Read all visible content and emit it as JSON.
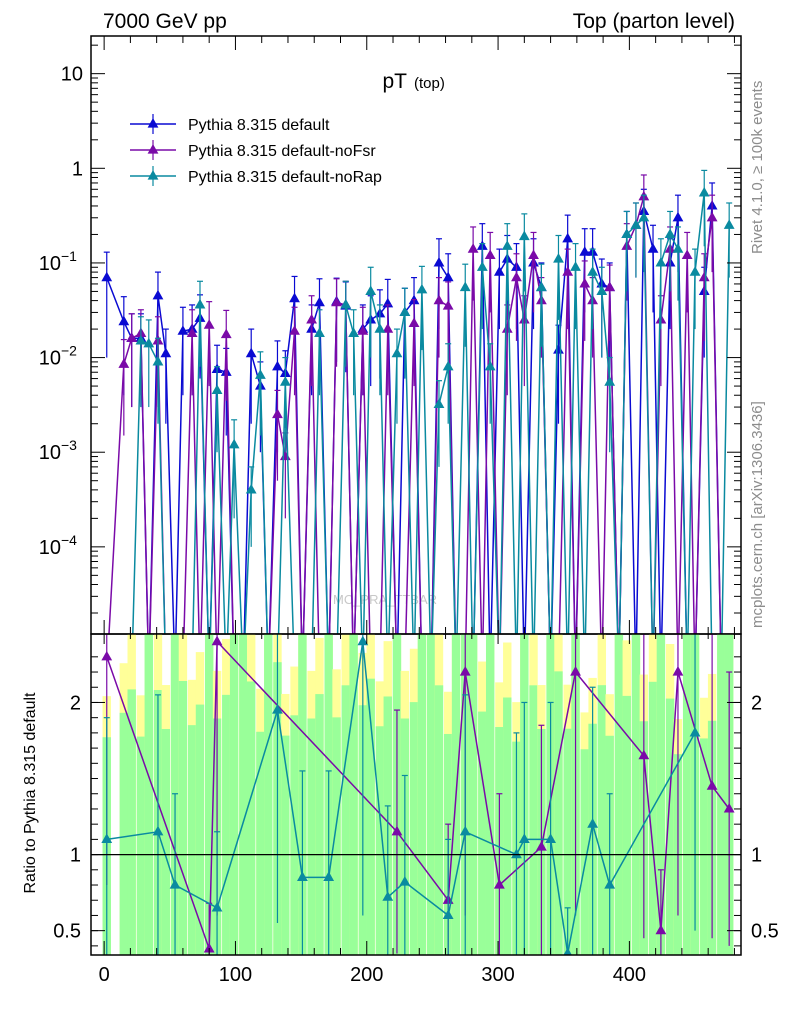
{
  "header": {
    "left": "7000 GeV pp",
    "right": "Top (parton level)"
  },
  "side_labels": {
    "upper": "Rivet 4.1.0, ≥ 100k events",
    "lower": "mcplots.cern.ch [arXiv:1306.3436]"
  },
  "colors": {
    "default": "#0a0ad2",
    "noFsr": "#7a0aa8",
    "noRap": "#0a8aa0",
    "band_green": "#99ff99",
    "band_yellow": "#ffff99"
  },
  "chart_data": [
    {
      "type": "line",
      "panel": "main",
      "title": "pT",
      "title_sub": "(top)",
      "watermark": "MC_PRA_TTBAR",
      "yscale": "log",
      "xlim": [
        -10,
        485
      ],
      "ylim": [
        1.2e-05,
        25
      ],
      "yticks": [
        {
          "value": 0.0001,
          "base": "10",
          "exp": "−4"
        },
        {
          "value": 0.001,
          "base": "10",
          "exp": "−3"
        },
        {
          "value": 0.01,
          "base": "10",
          "exp": "−2"
        },
        {
          "value": 0.1,
          "base": "10",
          "exp": "−1"
        },
        {
          "value": 1,
          "base": "1",
          "exp": ""
        },
        {
          "value": 10,
          "base": "10",
          "exp": ""
        }
      ],
      "legend_position": "top-left",
      "series": [
        {
          "name": "Pythia 8.315 default",
          "key": "default",
          "x": [
            2,
            15,
            21,
            28,
            34,
            41,
            47,
            54,
            60,
            67,
            73,
            80,
            86,
            93,
            99,
            106,
            112,
            119,
            125,
            132,
            138,
            145,
            151,
            158,
            164,
            171,
            177,
            184,
            190,
            197,
            203,
            210,
            216,
            223,
            229,
            236,
            242,
            249,
            255,
            262,
            268,
            275,
            281,
            288,
            294,
            301,
            307,
            314,
            320,
            327,
            333,
            340,
            346,
            353,
            359,
            366,
            372,
            379,
            385,
            392,
            398,
            405,
            411,
            418,
            424,
            431,
            437,
            444,
            450,
            457,
            463,
            470,
            476
          ],
          "y": [
            0.07,
            0.024,
            0.016,
            0.016,
            0,
            0.045,
            0.011,
            0,
            0.019,
            0.02,
            0.026,
            0,
            0.0075,
            0.007,
            0,
            0,
            0.011,
            0.005,
            0,
            0.008,
            0.0068,
            0.042,
            0,
            0.02,
            0.038,
            0,
            0.039,
            0.035,
            0,
            0.02,
            0.025,
            0.029,
            0.037,
            0,
            0.03,
            0.04,
            0,
            0,
            0.1,
            0.07,
            0,
            0,
            0,
            0.15,
            0,
            0.08,
            0.11,
            0.09,
            0,
            0.1,
            0.055,
            0,
            0.012,
            0.18,
            0,
            0.13,
            0.13,
            0.06,
            0.055,
            0,
            0.2,
            0,
            0.35,
            0.14,
            0,
            0.1,
            0.3,
            0,
            0,
            0.05,
            0.4,
            0,
            0
          ],
          "err": [
            0.06,
            0.02,
            0.013,
            0.013,
            0,
            0.035,
            0.009,
            0,
            0.015,
            0.016,
            0.02,
            0,
            0.006,
            0.0055,
            0,
            0,
            0.009,
            0.004,
            0,
            0.007,
            0.005,
            0.03,
            0,
            0.016,
            0.03,
            0,
            0.03,
            0.028,
            0,
            0.016,
            0.02,
            0.023,
            0.03,
            0,
            0.024,
            0.03,
            0,
            0,
            0.08,
            0.055,
            0,
            0,
            0,
            0.11,
            0,
            0.06,
            0.085,
            0.07,
            0,
            0.08,
            0.045,
            0,
            0.01,
            0.14,
            0,
            0.1,
            0.1,
            0.05,
            0.045,
            0,
            0.15,
            0,
            0.25,
            0.11,
            0,
            0.08,
            0.22,
            0,
            0,
            0.04,
            0.3,
            0,
            0
          ]
        },
        {
          "name": "Pythia 8.315 default-noFsr",
          "key": "noFsr",
          "x": [
            2,
            15,
            21,
            28,
            34,
            41,
            47,
            54,
            60,
            67,
            73,
            80,
            86,
            93,
            99,
            106,
            112,
            119,
            125,
            132,
            138,
            145,
            151,
            158,
            164,
            171,
            177,
            184,
            190,
            197,
            203,
            210,
            216,
            223,
            229,
            236,
            242,
            249,
            255,
            262,
            268,
            275,
            281,
            288,
            294,
            301,
            307,
            314,
            320,
            327,
            333,
            340,
            346,
            353,
            359,
            366,
            372,
            379,
            385,
            392,
            398,
            405,
            411,
            418,
            424,
            431,
            437,
            444,
            450,
            457,
            463,
            470,
            476
          ],
          "y": [
            0,
            0.0085,
            0.016,
            0.018,
            0,
            0.015,
            0,
            0,
            0,
            0.018,
            0,
            0.022,
            0,
            0.0175,
            0,
            0,
            0,
            0,
            0,
            0.0025,
            0.0009,
            0.019,
            0,
            0.025,
            0,
            0,
            0.038,
            0.036,
            0,
            0.019,
            0,
            0,
            0.02,
            0,
            0,
            0.023,
            0,
            0,
            0.04,
            0.035,
            0,
            0,
            0.14,
            0,
            0.12,
            0,
            0.02,
            0.07,
            0.025,
            0.12,
            0.04,
            0,
            0,
            0.08,
            0,
            0.06,
            0.04,
            0,
            0.055,
            0,
            0.15,
            0.25,
            0.5,
            0,
            0.025,
            0.14,
            0,
            0.12,
            0,
            0.07,
            0.3,
            0,
            0
          ],
          "err": [
            0,
            0.007,
            0.013,
            0.014,
            0,
            0.012,
            0,
            0,
            0,
            0.014,
            0,
            0.017,
            0,
            0.014,
            0,
            0,
            0,
            0,
            0,
            0.002,
            0.0007,
            0.015,
            0,
            0.02,
            0,
            0,
            0.03,
            0.028,
            0,
            0.015,
            0,
            0,
            0.016,
            0,
            0,
            0.018,
            0,
            0,
            0.03,
            0.028,
            0,
            0,
            0.1,
            0,
            0.09,
            0,
            0.016,
            0.055,
            0.02,
            0.09,
            0.03,
            0,
            0,
            0.06,
            0,
            0.045,
            0.03,
            0,
            0.04,
            0,
            0.11,
            0.18,
            0.35,
            0,
            0.02,
            0.1,
            0,
            0.09,
            0,
            0.055,
            0.22,
            0,
            0
          ]
        },
        {
          "name": "Pythia 8.315 default-noRap",
          "key": "noRap",
          "x": [
            2,
            15,
            21,
            28,
            34,
            41,
            47,
            54,
            60,
            67,
            73,
            80,
            86,
            93,
            99,
            106,
            112,
            119,
            125,
            132,
            138,
            145,
            151,
            158,
            164,
            171,
            177,
            184,
            190,
            197,
            203,
            210,
            216,
            223,
            229,
            236,
            242,
            249,
            255,
            262,
            268,
            275,
            281,
            288,
            294,
            301,
            307,
            314,
            320,
            327,
            333,
            340,
            346,
            353,
            359,
            366,
            372,
            379,
            385,
            392,
            398,
            405,
            411,
            418,
            424,
            431,
            437,
            444,
            450,
            457,
            463,
            470,
            476
          ],
          "y": [
            0,
            0,
            0,
            0.015,
            0.014,
            0.009,
            0,
            0,
            0,
            0,
            0.036,
            0,
            0.0045,
            0,
            0.0012,
            0,
            0.0004,
            0.0065,
            0,
            0,
            0.0055,
            0,
            0,
            0,
            0.018,
            0,
            0,
            0.036,
            0.018,
            0,
            0.05,
            0.02,
            0,
            0.011,
            0.03,
            0,
            0.052,
            0,
            0.0032,
            0.008,
            0,
            0.055,
            0,
            0.09,
            0.008,
            0,
            0.15,
            0,
            0.19,
            0,
            0.055,
            0,
            0.11,
            0,
            0.09,
            0,
            0.08,
            0.05,
            0.0055,
            0,
            0.2,
            0.25,
            0.3,
            0,
            0.1,
            0.2,
            0.14,
            0,
            0.08,
            0.55,
            0,
            0,
            0.25
          ],
          "err": [
            0,
            0,
            0,
            0.012,
            0.011,
            0.007,
            0,
            0,
            0,
            0,
            0.028,
            0,
            0.0035,
            0,
            0.001,
            0,
            0.0003,
            0.005,
            0,
            0,
            0.0045,
            0,
            0,
            0,
            0.014,
            0,
            0,
            0.028,
            0.014,
            0,
            0.04,
            0.016,
            0,
            0.009,
            0.024,
            0,
            0.04,
            0,
            0.0025,
            0.006,
            0,
            0.042,
            0,
            0.07,
            0.006,
            0,
            0.11,
            0,
            0.14,
            0,
            0.042,
            0,
            0.085,
            0,
            0.07,
            0,
            0.06,
            0.04,
            0.0045,
            0,
            0.15,
            0.18,
            0.22,
            0,
            0.08,
            0.15,
            0.1,
            0,
            0.06,
            0.4,
            0,
            0,
            0.18
          ]
        }
      ]
    },
    {
      "type": "line",
      "panel": "ratio",
      "ylabel": "Ratio to Pythia 8.315 default",
      "xlim": [
        -10,
        485
      ],
      "ylim": [
        0.34,
        2.45
      ],
      "yticks": [
        {
          "value": 0.5,
          "label": "0.5"
        },
        {
          "value": 1,
          "label": "1"
        },
        {
          "value": 2,
          "label": "2"
        }
      ],
      "xticks": [
        {
          "value": 0,
          "label": "0"
        },
        {
          "value": 100,
          "label": "100"
        },
        {
          "value": 200,
          "label": "200"
        },
        {
          "value": 300,
          "label": "300"
        },
        {
          "value": 400,
          "label": "400"
        }
      ],
      "reference_line": 1,
      "series": [
        {
          "name": "Pythia 8.315 default-noFsr",
          "key": "noFsr",
          "x": [
            2,
            80,
            86,
            223,
            262,
            275,
            301,
            333,
            359,
            411,
            424,
            437,
            463,
            476
          ],
          "y": [
            2.3,
            0.38,
            2.4,
            1.15,
            0.7,
            2.2,
            0.8,
            1.05,
            2.2,
            1.65,
            0.5,
            2.2,
            1.45,
            1.3
          ],
          "err": [
            1.5,
            0.3,
            1.8,
            0.8,
            0.5,
            1.6,
            0.6,
            0.8,
            1.6,
            1.2,
            0.4,
            1.6,
            1.0,
            0.9
          ]
        },
        {
          "name": "Pythia 8.315 default-noRap",
          "key": "noRap",
          "x": [
            2,
            41,
            54,
            86,
            132,
            151,
            171,
            197,
            216,
            229,
            262,
            275,
            314,
            320,
            340,
            353,
            372,
            385,
            450
          ],
          "y": [
            1.1,
            1.15,
            0.8,
            0.65,
            1.95,
            0.85,
            0.85,
            2.4,
            0.72,
            0.82,
            0.6,
            1.15,
            1.0,
            1.1,
            1.1,
            0.35,
            1.2,
            0.8,
            1.8
          ],
          "err": [
            0.8,
            0.9,
            0.6,
            0.5,
            1.4,
            0.7,
            0.7,
            1.8,
            0.6,
            0.7,
            0.5,
            0.9,
            0.8,
            0.9,
            0.9,
            0.3,
            0.9,
            0.6,
            1.3
          ]
        }
      ]
    }
  ]
}
